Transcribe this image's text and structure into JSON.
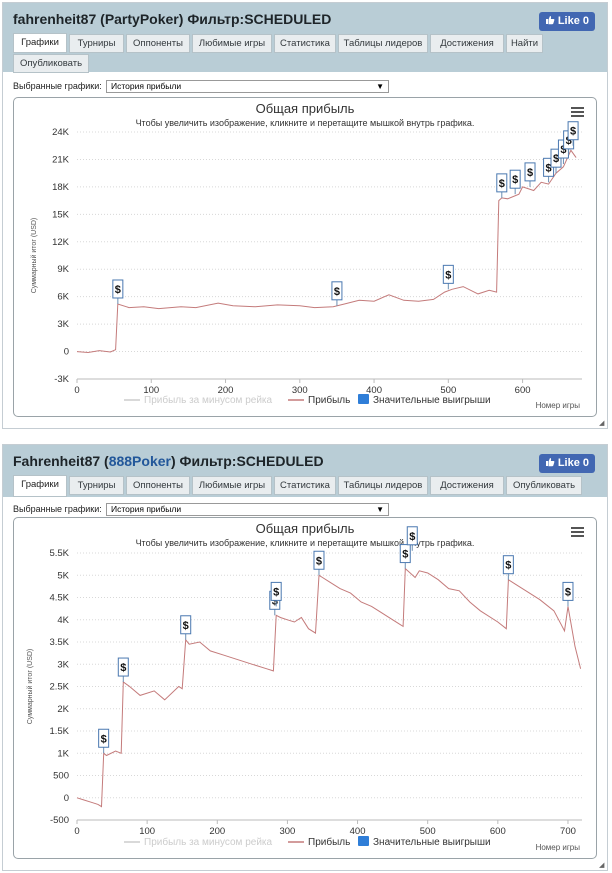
{
  "panels": [
    {
      "title_player": "fahrenheit87",
      "title_site": "PartyPoker",
      "title_filter": "Фильтр:SCHEDULED",
      "site_link": false,
      "like": "Like 0",
      "tabs": [
        "Графики",
        "Турниры",
        "Оппоненты",
        "Любимые игры",
        "Статистика",
        "Таблицы лидеров",
        "Достижения",
        "Найти",
        "Опубликовать"
      ],
      "selector_label": "Выбранные графики:",
      "selector_value": "История прибыли",
      "chart_data": {
        "type": "line",
        "title": "Общая прибыль",
        "subtitle": "Чтобы увеличить изображение, кликните и перетащите мышкой внутрь графика.",
        "ylabel": "Суммарный итог (USD)",
        "xlabel": "Номер игры",
        "ylim": [
          -3000,
          24000
        ],
        "xlim": [
          0,
          680
        ],
        "yticks": [
          -3000,
          0,
          3000,
          6000,
          9000,
          12000,
          15000,
          18000,
          21000,
          24000
        ],
        "ytick_labels": [
          "-3K",
          "0",
          "3K",
          "6K",
          "9K",
          "12K",
          "15K",
          "18K",
          "21K",
          "24K"
        ],
        "xticks": [
          0,
          100,
          200,
          300,
          400,
          500,
          600
        ],
        "xtick_labels": [
          "0",
          "100",
          "200",
          "300",
          "400",
          "500",
          "600"
        ],
        "legend": [
          "Прибыль за минусом рейка",
          "Прибыль",
          "Значительные выигрыши"
        ],
        "series": [
          {
            "name": "Прибыль",
            "color": "#c47b7b",
            "x": [
              0,
              15,
              30,
              45,
              52,
              55,
              70,
              90,
              110,
              140,
              160,
              190,
              210,
              240,
              270,
              300,
              320,
              345,
              360,
              380,
              400,
              420,
              440,
              460,
              480,
              495,
              505,
              520,
              540,
              555,
              565,
              568,
              572,
              580,
              595,
              600,
              615,
              625,
              635,
              645,
              655,
              665,
              672
            ],
            "y": [
              0,
              -100,
              100,
              -50,
              200,
              5200,
              4800,
              4900,
              4700,
              4900,
              4800,
              5300,
              5000,
              4900,
              5100,
              5000,
              4800,
              4900,
              5200,
              5600,
              5500,
              6200,
              5600,
              5500,
              5700,
              6500,
              6800,
              7100,
              6300,
              6700,
              6500,
              16500,
              16800,
              16700,
              17200,
              18000,
              17600,
              18500,
              18300,
              19500,
              20200,
              22000,
              21200
            ]
          }
        ],
        "big_wins": [
          {
            "x": 55,
            "y": 5200
          },
          {
            "x": 350,
            "y": 5000
          },
          {
            "x": 500,
            "y": 6800
          },
          {
            "x": 572,
            "y": 16800
          },
          {
            "x": 590,
            "y": 17200
          },
          {
            "x": 610,
            "y": 18000
          },
          {
            "x": 635,
            "y": 18500
          },
          {
            "x": 645,
            "y": 19500
          },
          {
            "x": 655,
            "y": 20500
          },
          {
            "x": 662,
            "y": 21500
          },
          {
            "x": 668,
            "y": 22500
          }
        ],
        "marker_symbol": "$"
      }
    },
    {
      "title_player": "Fahrenheit87",
      "title_site": "888Poker",
      "title_filter": "Фильтр:SCHEDULED",
      "site_link": true,
      "like": "Like 0",
      "tabs": [
        "Графики",
        "Турниры",
        "Оппоненты",
        "Любимые игры",
        "Статистика",
        "Таблицы лидеров",
        "Достижения",
        "Опубликовать"
      ],
      "selector_label": "Выбранные графики:",
      "selector_value": "История прибыли",
      "chart_data": {
        "type": "line",
        "title": "Общая прибыль",
        "subtitle": "Чтобы увеличить изображение, кликните и перетащите мышкой внутрь графика.",
        "ylabel": "Суммарный итог (USD)",
        "xlabel": "Номер игры",
        "ylim": [
          -500,
          5500
        ],
        "xlim": [
          0,
          720
        ],
        "yticks": [
          -500,
          0,
          500,
          1000,
          1500,
          2000,
          2500,
          3000,
          3500,
          4000,
          4500,
          5000,
          5500
        ],
        "ytick_labels": [
          "-500",
          "0",
          "500",
          "1K",
          "1.5K",
          "2K",
          "2.5K",
          "3K",
          "3.5K",
          "4K",
          "4.5K",
          "5K",
          "5.5K"
        ],
        "xticks": [
          0,
          100,
          200,
          300,
          400,
          500,
          600,
          700
        ],
        "xtick_labels": [
          "0",
          "100",
          "200",
          "300",
          "400",
          "500",
          "600",
          "700"
        ],
        "legend": [
          "Прибыль за минусом рейка",
          "Прибыль",
          "Значительные выигрыши"
        ],
        "series": [
          {
            "name": "Прибыль",
            "color": "#c47b7b",
            "x": [
              0,
              10,
              20,
              30,
              35,
              38,
              42,
              55,
              63,
              66,
              75,
              90,
              110,
              125,
              145,
              150,
              155,
              160,
              175,
              190,
              210,
              230,
              250,
              270,
              280,
              284,
              290,
              300,
              310,
              320,
              330,
              340,
              345,
              350,
              360,
              375,
              390,
              405,
              420,
              440,
              460,
              465,
              468,
              475,
              482,
              488,
              500,
              515,
              530,
              545,
              560,
              575,
              600,
              612,
              615,
              625,
              640,
              660,
              680,
              690,
              695,
              700,
              710,
              718
            ],
            "y": [
              0,
              -50,
              -100,
              -150,
              -200,
              1000,
              950,
              1050,
              1000,
              2600,
              2500,
              2300,
              2400,
              2200,
              2500,
              2450,
              3550,
              3450,
              3500,
              3300,
              3200,
              3100,
              3000,
              2900,
              2850,
              4100,
              4050,
              4000,
              3950,
              4050,
              3800,
              3700,
              5000,
              4950,
              4850,
              4700,
              4600,
              4400,
              4300,
              4100,
              3900,
              3850,
              5150,
              5050,
              4950,
              5100,
              5050,
              4900,
              4700,
              4650,
              4400,
              4200,
              3950,
              3800,
              4900,
              4800,
              4650,
              4450,
              4200,
              3900,
              3750,
              4300,
              3400,
              2900
            ]
          }
        ],
        "big_wins": [
          {
            "x": 38,
            "y": 1000
          },
          {
            "x": 66,
            "y": 2600
          },
          {
            "x": 155,
            "y": 3550
          },
          {
            "x": 282,
            "y": 4100
          },
          {
            "x": 284,
            "y": 4300
          },
          {
            "x": 345,
            "y": 5000
          },
          {
            "x": 468,
            "y": 5150
          },
          {
            "x": 478,
            "y": 5550
          },
          {
            "x": 615,
            "y": 4900
          },
          {
            "x": 700,
            "y": 4300
          }
        ],
        "marker_symbol": "$"
      }
    }
  ]
}
